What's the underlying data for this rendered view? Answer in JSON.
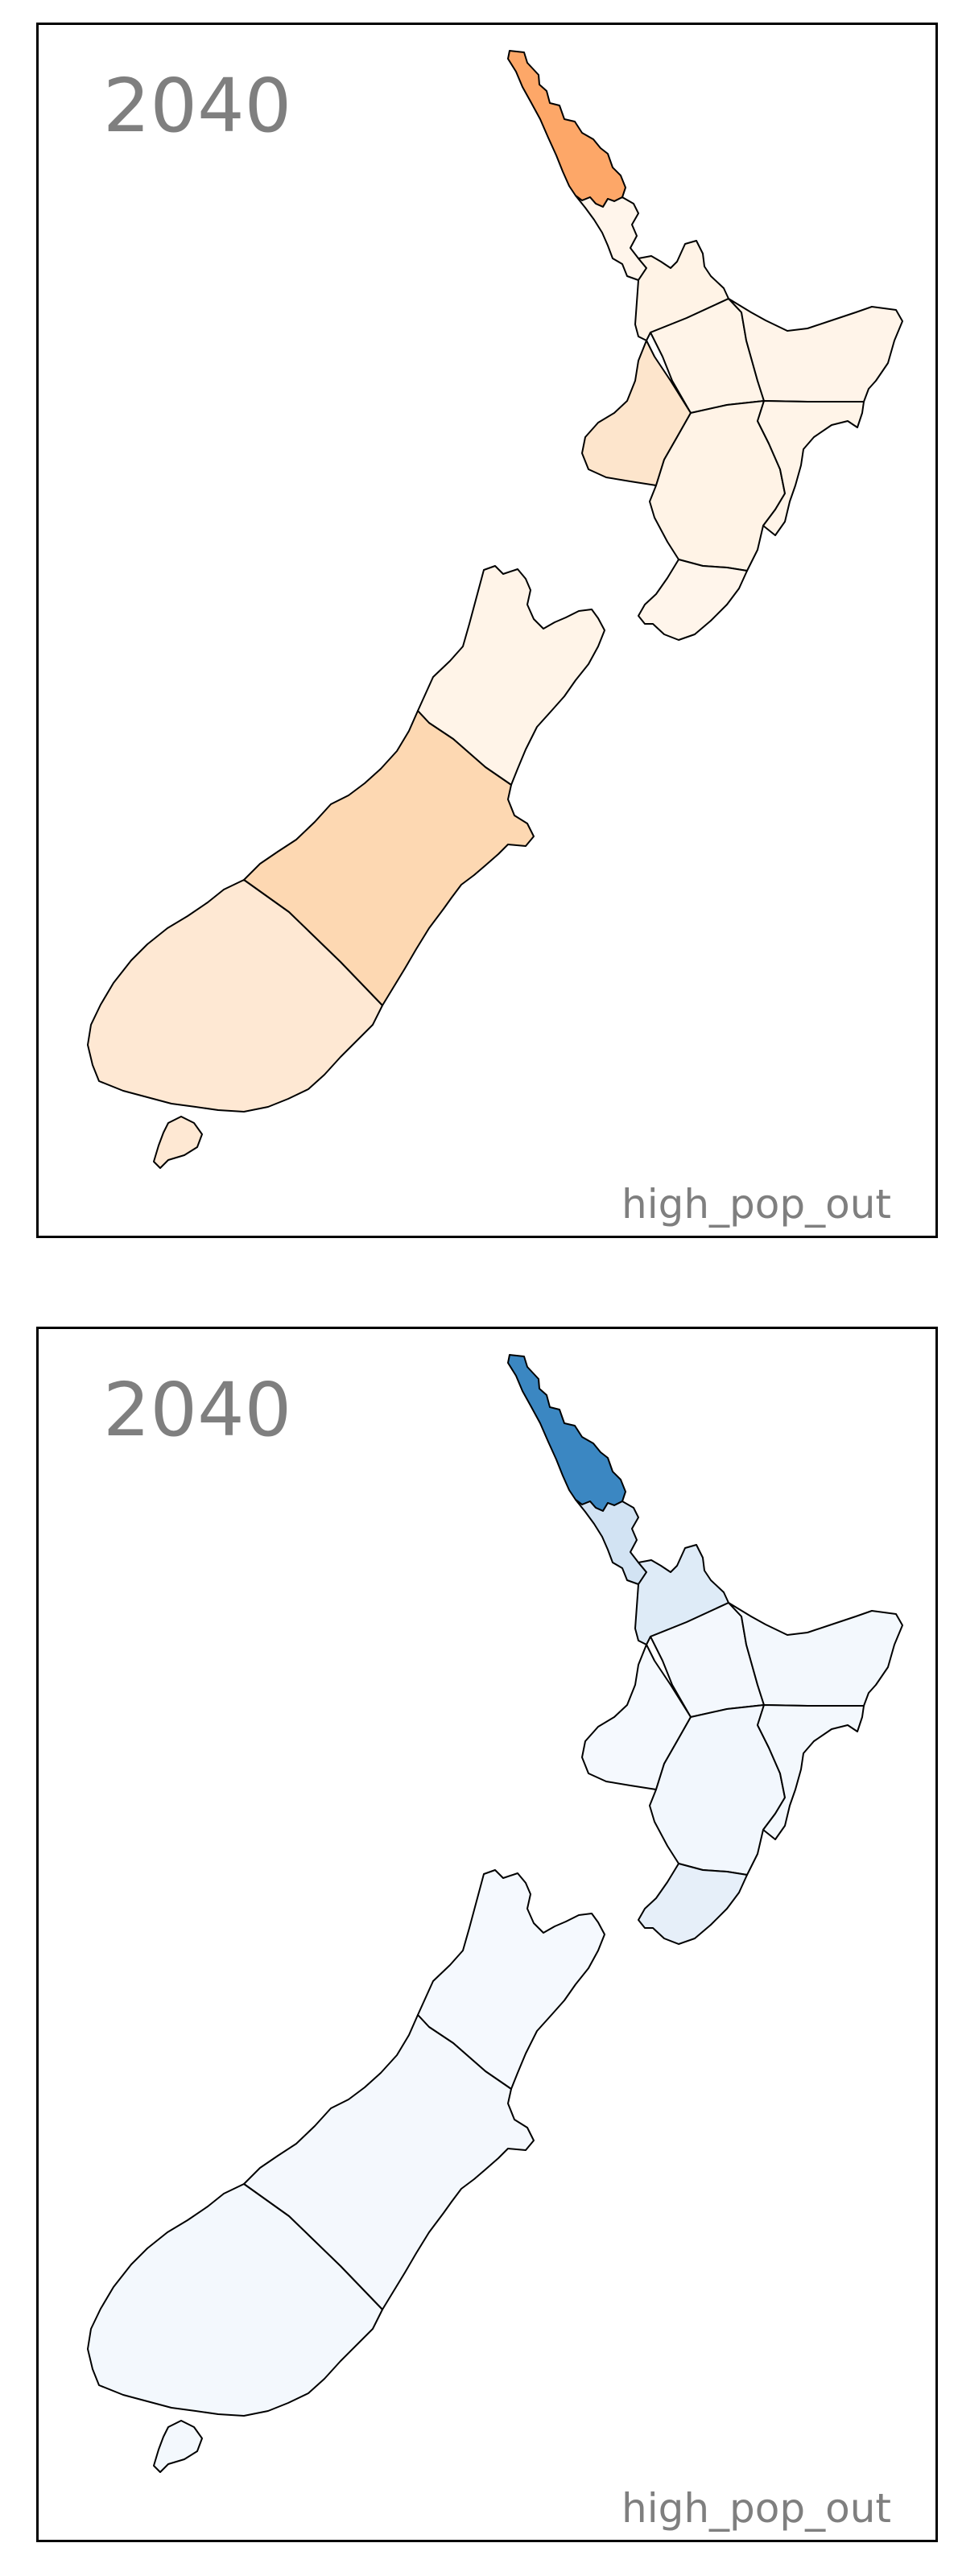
{
  "colors": {
    "orange_scale": {
      "Northland": "#fda768",
      "Auckland": "#fff5eb",
      "Waikato": "#fff3e6",
      "Bay of Plenty": "#fff4e8",
      "Gisborne": "#fff4e9",
      "Taranaki": "#fde5cc",
      "Manawatu-Wanganui": "#fff3e6",
      "Hawke's Bay": "#fff4e8",
      "Wellington": "#fff5eb",
      "Tasman-Nelson-Marlborough": "#fff4e8",
      "Canterbury": "#fdd8b2",
      "Otago-Southland": "#fee8d3"
    },
    "blue_scale": {
      "Northland": "#3b87c2",
      "Auckland": "#d2e3f3",
      "Waikato": "#deebf7",
      "Bay of Plenty": "#f4f8fd",
      "Gisborne": "#f3f8fd",
      "Taranaki": "#f5f9fe",
      "Manawatu-Wanganui": "#f2f7fd",
      "Hawke's Bay": "#f3f8fd",
      "Wellington": "#e6eff9",
      "Tasman-Nelson-Marlborough": "#f5f9fe",
      "Canterbury": "#f4f8fd",
      "Otago-Southland": "#f3f8fd"
    }
  },
  "panels": [
    {
      "year": "2040",
      "scenario": "high_pop_out",
      "palette": "orange_scale"
    },
    {
      "year": "2040",
      "scenario": "high_pop_out",
      "palette": "blue_scale"
    }
  ]
}
